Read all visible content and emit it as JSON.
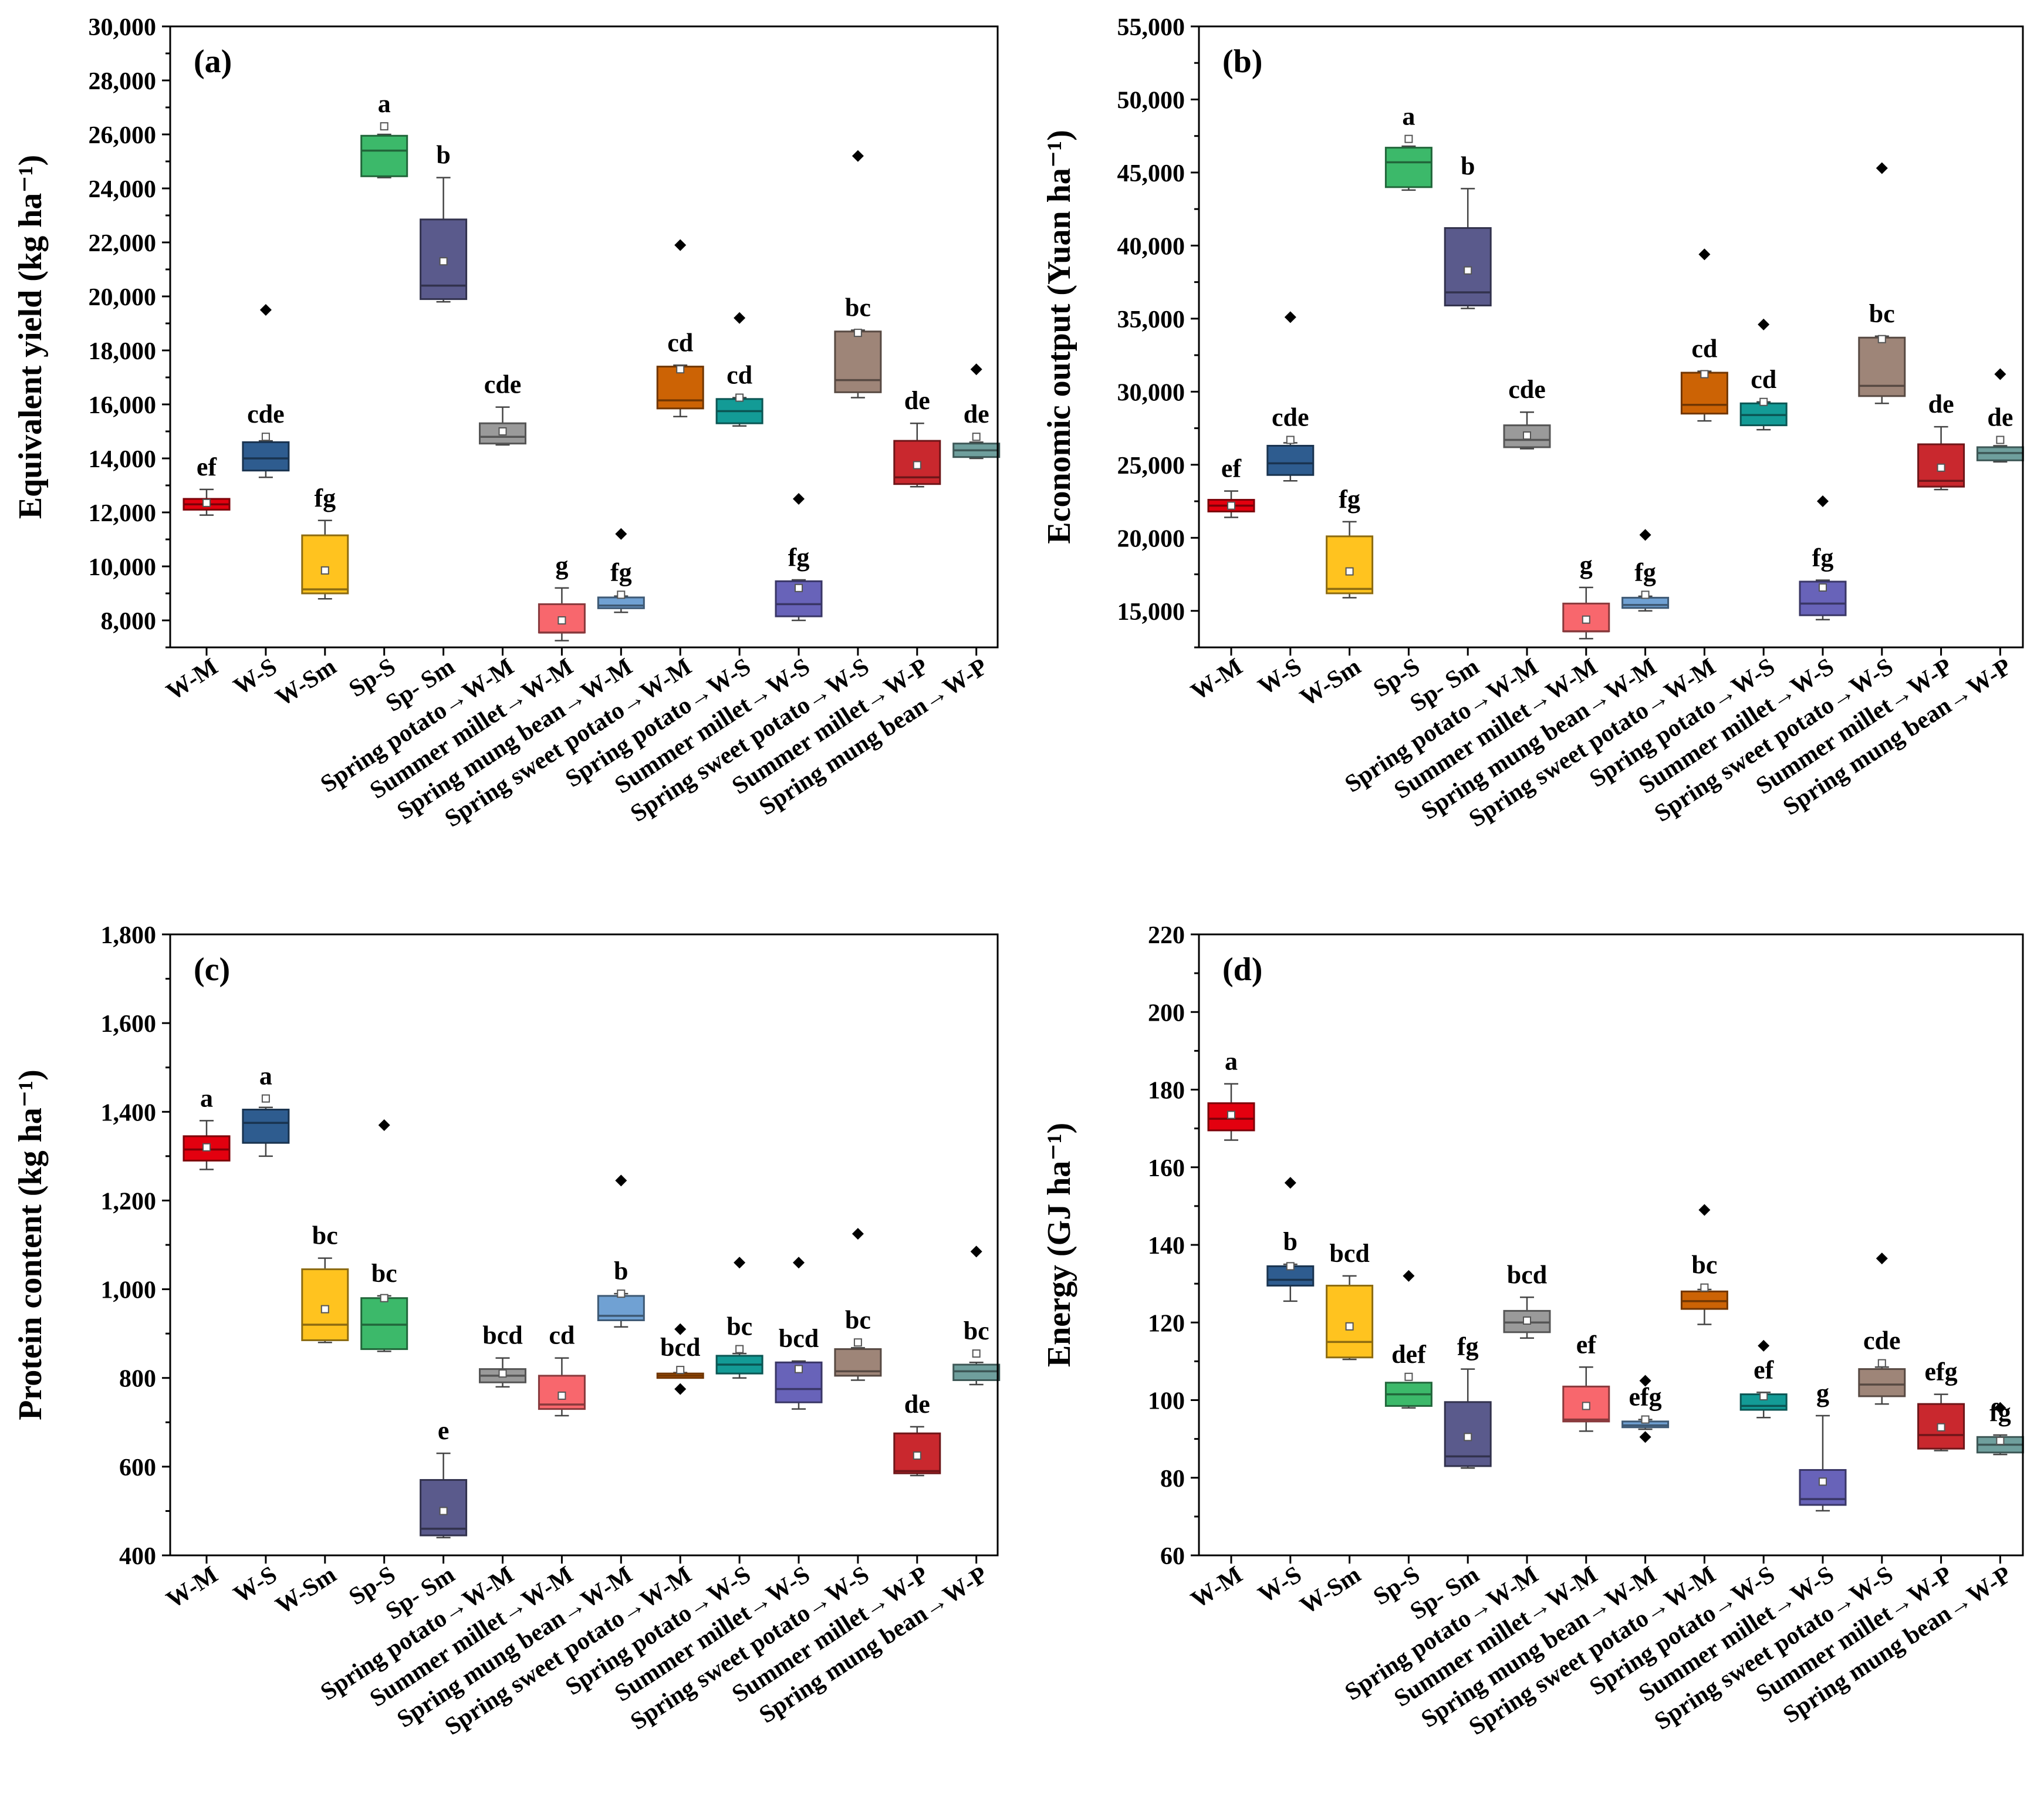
{
  "categories": [
    "W-M",
    "W-S",
    "W-Sm",
    "Sp-S",
    "Sp- Sm",
    "Spring potato→W-M",
    "Summer millet→W-M",
    "Spring mung bean→W-M",
    "Spring sweet potato→W-M",
    "Spring potato→W-S",
    "Summer millet→W-S",
    "Spring sweet potato→W-S",
    "Summer millet→W-P",
    "Spring mung bean→W-P"
  ],
  "colors": [
    "#e3000f",
    "#2e5c8f",
    "#ffc31f",
    "#3cb96a",
    "#5a5a8c",
    "#9a9a9a",
    "#f8676d",
    "#70a1d3",
    "#cc6305",
    "#139b96",
    "#6863b9",
    "#9e8578",
    "#c9282e",
    "#6f9f9d"
  ],
  "chart_data": [
    {
      "type": "box",
      "panel": "(a)",
      "ylabel": "Equivalent yield (kg ha⁻¹)",
      "ylim": [
        7000,
        30000
      ],
      "yticks": [
        8000,
        10000,
        12000,
        14000,
        16000,
        18000,
        20000,
        22000,
        24000,
        26000,
        28000,
        30000
      ],
      "tick_labels": [
        "8,000",
        "10,000",
        "12,000",
        "14,000",
        "16,000",
        "18,000",
        "20,000",
        "22,000",
        "24,000",
        "26,000",
        "28,000",
        "30,000"
      ],
      "minor_step": 1000,
      "boxes": [
        {
          "min": 11900,
          "q1": 12100,
          "median": 12300,
          "q3": 12500,
          "max": 12850,
          "mean": 12350,
          "outliers": [],
          "sig": "ef"
        },
        {
          "min": 13300,
          "q1": 13550,
          "median": 14000,
          "q3": 14600,
          "max": 14650,
          "mean": 14800,
          "outliers": [
            19500
          ],
          "sig": "cde"
        },
        {
          "min": 8800,
          "q1": 9000,
          "median": 9150,
          "q3": 11150,
          "max": 11700,
          "mean": 9850,
          "outliers": [],
          "sig": "fg"
        },
        {
          "min": 24400,
          "q1": 24450,
          "median": 25400,
          "q3": 25950,
          "max": 26000,
          "mean": 26300,
          "outliers": [],
          "sig": "a"
        },
        {
          "min": 19800,
          "q1": 19900,
          "median": 20400,
          "q3": 22850,
          "max": 24400,
          "mean": 21300,
          "outliers": [],
          "sig": "b"
        },
        {
          "min": 14500,
          "q1": 14550,
          "median": 14800,
          "q3": 15300,
          "max": 15900,
          "mean": 15000,
          "outliers": [],
          "sig": "cde"
        },
        {
          "min": 7250,
          "q1": 7550,
          "median": 7550,
          "q3": 8600,
          "max": 9200,
          "mean": 8000,
          "outliers": [],
          "sig": "g"
        },
        {
          "min": 8300,
          "q1": 8450,
          "median": 8550,
          "q3": 8850,
          "max": 8900,
          "mean": 8950,
          "outliers": [
            11200
          ],
          "sig": "fg"
        },
        {
          "min": 15550,
          "q1": 15850,
          "median": 16150,
          "q3": 17400,
          "max": 17450,
          "mean": 17300,
          "outliers": [
            21900
          ],
          "sig": "cd"
        },
        {
          "min": 15200,
          "q1": 15300,
          "median": 15750,
          "q3": 16200,
          "max": 16250,
          "mean": 16250,
          "outliers": [
            19200
          ],
          "sig": "cd"
        },
        {
          "min": 8000,
          "q1": 8150,
          "median": 8600,
          "q3": 9450,
          "max": 9500,
          "mean": 9200,
          "outliers": [
            12500
          ],
          "sig": "fg"
        },
        {
          "min": 16250,
          "q1": 16450,
          "median": 16900,
          "q3": 18700,
          "max": 18750,
          "mean": 18650,
          "outliers": [
            25200
          ],
          "sig": "bc"
        },
        {
          "min": 12950,
          "q1": 13050,
          "median": 13300,
          "q3": 14650,
          "max": 15300,
          "mean": 13750,
          "outliers": [],
          "sig": "de"
        },
        {
          "min": 14000,
          "q1": 14050,
          "median": 14300,
          "q3": 14550,
          "max": 14600,
          "mean": 14800,
          "outliers": [
            17300
          ],
          "sig": "de"
        }
      ]
    },
    {
      "type": "box",
      "panel": "(b)",
      "ylabel": "Economic output (Yuan ha⁻¹)",
      "ylim": [
        12500,
        55000
      ],
      "yticks": [
        15000,
        20000,
        25000,
        30000,
        35000,
        40000,
        45000,
        50000,
        55000
      ],
      "tick_labels": [
        "15,000",
        "20,000",
        "25,000",
        "30,000",
        "35,000",
        "40,000",
        "45,000",
        "50,000",
        "55,000"
      ],
      "minor_step": 2500,
      "boxes": [
        {
          "min": 21400,
          "q1": 21800,
          "median": 22200,
          "q3": 22600,
          "max": 23200,
          "mean": 22200,
          "outliers": [],
          "sig": "ef"
        },
        {
          "min": 23900,
          "q1": 24300,
          "median": 25100,
          "q3": 26300,
          "max": 26500,
          "mean": 26700,
          "outliers": [
            35100
          ],
          "sig": "cde"
        },
        {
          "min": 15900,
          "q1": 16200,
          "median": 16500,
          "q3": 20100,
          "max": 21100,
          "mean": 17700,
          "outliers": [],
          "sig": "fg"
        },
        {
          "min": 43800,
          "q1": 44000,
          "median": 45700,
          "q3": 46700,
          "max": 46800,
          "mean": 47300,
          "outliers": [],
          "sig": "a"
        },
        {
          "min": 35700,
          "q1": 35900,
          "median": 36800,
          "q3": 41200,
          "max": 43900,
          "mean": 38300,
          "outliers": [],
          "sig": "b"
        },
        {
          "min": 26100,
          "q1": 26200,
          "median": 26700,
          "q3": 27700,
          "max": 28600,
          "mean": 27000,
          "outliers": [],
          "sig": "cde"
        },
        {
          "min": 13100,
          "q1": 13600,
          "median": 13600,
          "q3": 15500,
          "max": 16600,
          "mean": 14400,
          "outliers": [],
          "sig": "g"
        },
        {
          "min": 15000,
          "q1": 15200,
          "median": 15400,
          "q3": 15900,
          "max": 16000,
          "mean": 16100,
          "outliers": [
            20200
          ],
          "sig": "fg"
        },
        {
          "min": 28000,
          "q1": 28500,
          "median": 29100,
          "q3": 31300,
          "max": 31400,
          "mean": 31200,
          "outliers": [
            39400
          ],
          "sig": "cd"
        },
        {
          "min": 27400,
          "q1": 27700,
          "median": 28400,
          "q3": 29200,
          "max": 29300,
          "mean": 29300,
          "outliers": [
            34600
          ],
          "sig": "cd"
        },
        {
          "min": 14400,
          "q1": 14700,
          "median": 15500,
          "q3": 17000,
          "max": 17100,
          "mean": 16600,
          "outliers": [
            22500
          ],
          "sig": "fg"
        },
        {
          "min": 29200,
          "q1": 29700,
          "median": 30400,
          "q3": 33700,
          "max": 33800,
          "mean": 33600,
          "outliers": [
            45300
          ],
          "sig": "bc"
        },
        {
          "min": 23300,
          "q1": 23500,
          "median": 23900,
          "q3": 26400,
          "max": 27600,
          "mean": 24800,
          "outliers": [],
          "sig": "de"
        },
        {
          "min": 25200,
          "q1": 25300,
          "median": 25800,
          "q3": 26200,
          "max": 26300,
          "mean": 26700,
          "outliers": [
            31200
          ],
          "sig": "de"
        }
      ]
    },
    {
      "type": "box",
      "panel": "(c)",
      "ylabel": "Protein content (kg ha⁻¹)",
      "ylim": [
        400,
        1800
      ],
      "yticks": [
        400,
        600,
        800,
        1000,
        1200,
        1400,
        1600,
        1800
      ],
      "tick_labels": [
        "400",
        "600",
        "800",
        "1,000",
        "1,200",
        "1,400",
        "1,600",
        "1,800"
      ],
      "minor_step": 100,
      "boxes": [
        {
          "min": 1270,
          "q1": 1290,
          "median": 1315,
          "q3": 1345,
          "max": 1380,
          "mean": 1320,
          "outliers": [],
          "sig": "a"
        },
        {
          "min": 1300,
          "q1": 1330,
          "median": 1375,
          "q3": 1405,
          "max": 1410,
          "mean": 1430,
          "outliers": [],
          "sig": "a"
        },
        {
          "min": 880,
          "q1": 885,
          "median": 920,
          "q3": 1045,
          "max": 1070,
          "mean": 955,
          "outliers": [],
          "sig": "bc"
        },
        {
          "min": 860,
          "q1": 865,
          "median": 920,
          "q3": 980,
          "max": 985,
          "mean": 980,
          "outliers": [
            1370
          ],
          "sig": "bc"
        },
        {
          "min": 440,
          "q1": 445,
          "median": 460,
          "q3": 570,
          "max": 630,
          "mean": 500,
          "outliers": [],
          "sig": "e"
        },
        {
          "min": 780,
          "q1": 790,
          "median": 805,
          "q3": 820,
          "max": 845,
          "mean": 810,
          "outliers": [],
          "sig": "bcd"
        },
        {
          "min": 715,
          "q1": 730,
          "median": 740,
          "q3": 805,
          "max": 845,
          "mean": 760,
          "outliers": [],
          "sig": "cd"
        },
        {
          "min": 915,
          "q1": 930,
          "median": 940,
          "q3": 985,
          "max": 990,
          "mean": 990,
          "outliers": [
            1245
          ],
          "sig": "b"
        },
        {
          "min": 800,
          "q1": 800,
          "median": 805,
          "q3": 810,
          "max": 812,
          "mean": 818,
          "outliers": [
            910,
            775
          ],
          "sig": "bcd"
        },
        {
          "min": 800,
          "q1": 810,
          "median": 830,
          "q3": 850,
          "max": 855,
          "mean": 865,
          "outliers": [
            1060
          ],
          "sig": "bc"
        },
        {
          "min": 730,
          "q1": 745,
          "median": 775,
          "q3": 835,
          "max": 838,
          "mean": 820,
          "outliers": [
            1060
          ],
          "sig": "bcd"
        },
        {
          "min": 795,
          "q1": 805,
          "median": 815,
          "q3": 865,
          "max": 868,
          "mean": 880,
          "outliers": [
            1125
          ],
          "sig": "bc"
        },
        {
          "min": 580,
          "q1": 585,
          "median": 590,
          "q3": 675,
          "max": 690,
          "mean": 625,
          "outliers": [],
          "sig": "de"
        },
        {
          "min": 785,
          "q1": 795,
          "median": 815,
          "q3": 830,
          "max": 835,
          "mean": 855,
          "outliers": [
            1085
          ],
          "sig": "bc"
        }
      ]
    },
    {
      "type": "box",
      "panel": "(d)",
      "ylabel": "Energy (GJ ha⁻¹)",
      "ylim": [
        60,
        220
      ],
      "yticks": [
        60,
        80,
        100,
        120,
        140,
        160,
        180,
        200,
        220
      ],
      "tick_labels": [
        "60",
        "80",
        "100",
        "120",
        "140",
        "160",
        "180",
        "200",
        "220"
      ],
      "minor_step": 10,
      "boxes": [
        {
          "min": 167,
          "q1": 169.5,
          "median": 172.5,
          "q3": 176.5,
          "max": 181.5,
          "mean": 173.5,
          "outliers": [],
          "sig": "a"
        },
        {
          "min": 125.5,
          "q1": 129.5,
          "median": 131,
          "q3": 134.5,
          "max": 135,
          "mean": 134.5,
          "outliers": [
            156
          ],
          "sig": "b"
        },
        {
          "min": 110.5,
          "q1": 111,
          "median": 115,
          "q3": 129.5,
          "max": 132,
          "mean": 119,
          "outliers": [],
          "sig": "bcd"
        },
        {
          "min": 98,
          "q1": 98.5,
          "median": 101.5,
          "q3": 104.5,
          "max": 104.5,
          "mean": 106,
          "outliers": [
            132
          ],
          "sig": "def"
        },
        {
          "min": 82.5,
          "q1": 83,
          "median": 85.5,
          "q3": 99.5,
          "max": 108,
          "mean": 90.5,
          "outliers": [],
          "sig": "fg"
        },
        {
          "min": 116,
          "q1": 117.5,
          "median": 120,
          "q3": 123,
          "max": 126.5,
          "mean": 120.5,
          "outliers": [],
          "sig": "bcd"
        },
        {
          "min": 92,
          "q1": 94.5,
          "median": 95,
          "q3": 103.5,
          "max": 108.5,
          "mean": 98.5,
          "outliers": [],
          "sig": "ef"
        },
        {
          "min": 92.5,
          "q1": 93,
          "median": 93.5,
          "q3": 94.5,
          "max": 95,
          "mean": 95,
          "outliers": [
            105,
            90.5
          ],
          "sig": "efg"
        },
        {
          "min": 119.5,
          "q1": 123.5,
          "median": 125.5,
          "q3": 128,
          "max": 128.5,
          "mean": 129,
          "outliers": [
            149
          ],
          "sig": "bc"
        },
        {
          "min": 95.5,
          "q1": 97.5,
          "median": 98.5,
          "q3": 101.5,
          "max": 102,
          "mean": 101,
          "outliers": [
            114
          ],
          "sig": "ef"
        },
        {
          "min": 71.5,
          "q1": 73,
          "median": 74.5,
          "q3": 82,
          "max": 96,
          "mean": 79,
          "outliers": [],
          "sig": "g"
        },
        {
          "min": 99,
          "q1": 101,
          "median": 104,
          "q3": 108,
          "max": 108.5,
          "mean": 109.5,
          "outliers": [
            136.5
          ],
          "sig": "cde"
        },
        {
          "min": 87,
          "q1": 87.5,
          "median": 91,
          "q3": 99,
          "max": 101.5,
          "mean": 93,
          "outliers": [],
          "sig": "efg"
        },
        {
          "min": 86,
          "q1": 86.5,
          "median": 88.5,
          "q3": 90.5,
          "max": 91,
          "mean": 89.5,
          "outliers": [
            98
          ],
          "sig": "fg"
        }
      ]
    }
  ]
}
